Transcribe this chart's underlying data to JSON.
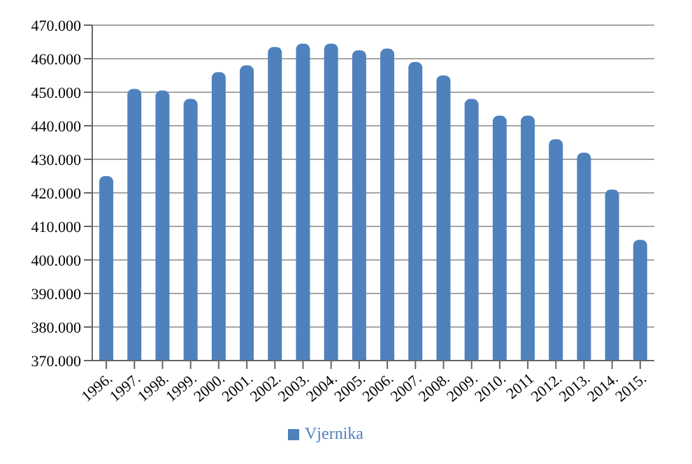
{
  "chart_data": {
    "type": "bar",
    "categories": [
      "1996.",
      "1997.",
      "1998.",
      "1999.",
      "2000.",
      "2001.",
      "2002.",
      "2003.",
      "2004.",
      "2005.",
      "2006.",
      "2007.",
      "2008.",
      "2009.",
      "2010.",
      "2011",
      "2012.",
      "2013.",
      "2014.",
      "2015."
    ],
    "series": [
      {
        "name": "Vjernika",
        "color": "#4f81bd",
        "values": [
          425000,
          451000,
          450500,
          448000,
          456000,
          458000,
          463500,
          464500,
          464500,
          462500,
          463000,
          459000,
          455000,
          448000,
          443000,
          443000,
          436000,
          432000,
          421000,
          406000
        ]
      }
    ],
    "ylim": [
      370000,
      470000
    ],
    "yticks": [
      {
        "value": 370000,
        "label": "370.000"
      },
      {
        "value": 380000,
        "label": "380.000"
      },
      {
        "value": 390000,
        "label": "390.000"
      },
      {
        "value": 400000,
        "label": "400.000"
      },
      {
        "value": 410000,
        "label": "410.000"
      },
      {
        "value": 420000,
        "label": "420.000"
      },
      {
        "value": 430000,
        "label": "430.000"
      },
      {
        "value": 440000,
        "label": "440.000"
      },
      {
        "value": 450000,
        "label": "450.000"
      },
      {
        "value": 460000,
        "label": "460.000"
      },
      {
        "value": 470000,
        "label": "470.000"
      }
    ],
    "grid": "y",
    "legend": "bottom"
  }
}
